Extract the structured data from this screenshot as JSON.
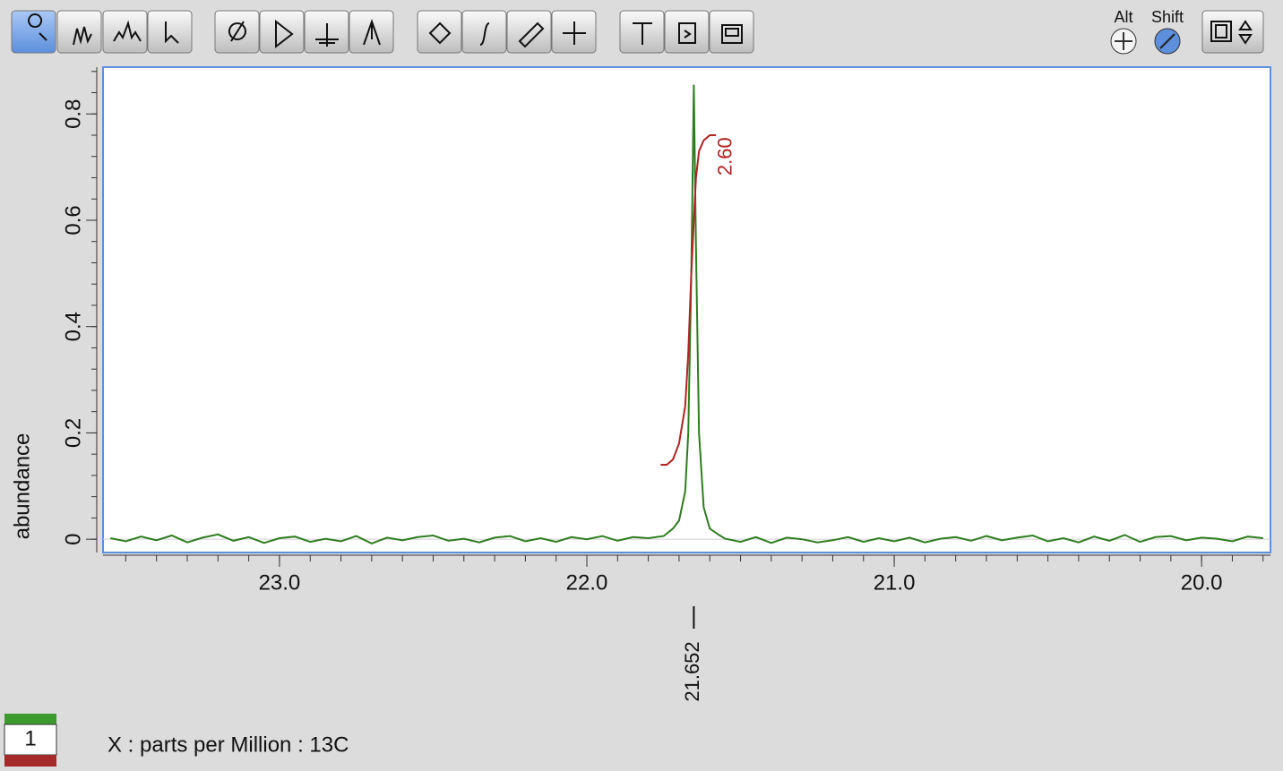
{
  "toolbar": {
    "alt_label": "Alt",
    "shift_label": "Shift"
  },
  "legend": {
    "label": "1"
  },
  "chart_data": {
    "type": "line",
    "xlabel": "X : parts per Million : 13C",
    "ylabel": "abundance",
    "xlim": [
      23.574,
      19.776
    ],
    "ylim": [
      -0.025,
      0.888
    ],
    "xticks": [
      {
        "value": 23,
        "label": "23.0"
      },
      {
        "value": 22,
        "label": "22.0"
      },
      {
        "value": 21,
        "label": "21.0"
      },
      {
        "value": 20,
        "label": "20.0"
      }
    ],
    "yticks": [
      0,
      0.2,
      0.4,
      0.6,
      0.8
    ],
    "x_minor_step": 0.1,
    "y_minor_step": 0.04,
    "series": [
      {
        "color": "#2e7d1f",
        "x": [
          23.55,
          23.5,
          23.45,
          23.4,
          23.35,
          23.3,
          23.25,
          23.2,
          23.15,
          23.1,
          23.05,
          23.0,
          22.95,
          22.9,
          22.85,
          22.8,
          22.75,
          22.7,
          22.65,
          22.6,
          22.55,
          22.5,
          22.45,
          22.4,
          22.35,
          22.3,
          22.25,
          22.2,
          22.15,
          22.1,
          22.05,
          22.0,
          21.95,
          21.9,
          21.85,
          21.8,
          21.75,
          21.72,
          21.7,
          21.68,
          21.67,
          21.66,
          21.652,
          21.645,
          21.635,
          21.62,
          21.6,
          21.57,
          21.55,
          21.5,
          21.45,
          21.4,
          21.35,
          21.3,
          21.25,
          21.2,
          21.15,
          21.1,
          21.05,
          21.0,
          20.95,
          20.9,
          20.85,
          20.8,
          20.75,
          20.7,
          20.65,
          20.6,
          20.55,
          20.5,
          20.45,
          20.4,
          20.35,
          20.3,
          20.25,
          20.2,
          20.15,
          20.1,
          20.05,
          20.0,
          19.95,
          19.9,
          19.85,
          19.8
        ],
        "values": [
          0.002,
          -0.004,
          0.005,
          -0.002,
          0.007,
          -0.006,
          0.003,
          0.009,
          -0.003,
          0.004,
          -0.007,
          0.002,
          0.005,
          -0.005,
          0.001,
          -0.004,
          0.006,
          -0.008,
          0.003,
          -0.002,
          0.004,
          0.007,
          -0.003,
          0.001,
          -0.006,
          0.003,
          0.006,
          -0.004,
          0.002,
          -0.005,
          0.004,
          0.0,
          0.006,
          -0.003,
          0.004,
          0.002,
          0.006,
          0.02,
          0.035,
          0.09,
          0.2,
          0.5,
          0.855,
          0.55,
          0.2,
          0.06,
          0.02,
          0.008,
          0.001,
          -0.005,
          0.004,
          -0.007,
          0.003,
          0.0,
          -0.006,
          -0.002,
          0.004,
          -0.005,
          0.002,
          -0.004,
          0.003,
          -0.006,
          0.001,
          0.004,
          -0.003,
          0.006,
          -0.002,
          0.003,
          0.007,
          -0.004,
          0.002,
          -0.006,
          0.005,
          -0.003,
          0.008,
          -0.005,
          0.004,
          0.006,
          -0.002,
          0.003,
          0.001,
          -0.004,
          0.005,
          0.002
        ]
      },
      {
        "color": "#b22222",
        "x": [
          21.76,
          21.74,
          21.72,
          21.7,
          21.68,
          21.67,
          21.66,
          21.652,
          21.645,
          21.635,
          21.62,
          21.6,
          21.58
        ],
        "values": [
          0.14,
          0.14,
          0.15,
          0.18,
          0.25,
          0.35,
          0.5,
          0.6,
          0.68,
          0.73,
          0.75,
          0.76,
          0.76
        ]
      }
    ],
    "integral_label": {
      "x": 21.57,
      "y": 0.72,
      "value": 2.6,
      "label": "2.60"
    },
    "peak_label": 21.652
  }
}
